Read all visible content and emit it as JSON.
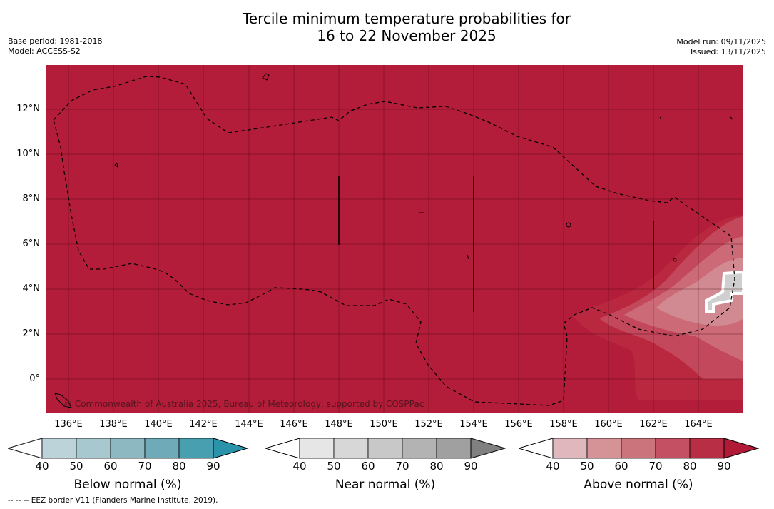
{
  "header": {
    "title_line1": "Tercile minimum temperature probabilities for",
    "title_line2": "16 to 22 November 2025",
    "base_period": "Base period: 1981-2018",
    "model": "Model: ACCESS-S2",
    "model_run": "Model run: 09/11/2025",
    "issued": "Issued: 13/11/2025"
  },
  "map": {
    "background_color": "#b31d3a",
    "copyright": "© Commonwealth of Australia 2025, Bureau of Meteorology, supported by COSPPac",
    "lat_labels": [
      "12°N",
      "10°N",
      "8°N",
      "6°N",
      "4°N",
      "2°N",
      "0°"
    ],
    "lon_labels": [
      "136°E",
      "138°E",
      "140°E",
      "142°E",
      "144°E",
      "146°E",
      "148°E",
      "150°E",
      "152°E",
      "154°E",
      "156°E",
      "158°E",
      "160°E",
      "162°E",
      "164°E"
    ]
  },
  "colorbars": [
    {
      "title": "Below normal (%)",
      "ticks": [
        "40",
        "50",
        "60",
        "70",
        "80",
        "90"
      ],
      "colors": [
        "#ffffff",
        "#bdd3da",
        "#a7c8ce",
        "#8db7c1",
        "#6eaab8",
        "#489fb0",
        "#2a93a9"
      ]
    },
    {
      "title": "Near normal (%)",
      "ticks": [
        "40",
        "50",
        "60",
        "70",
        "80",
        "90"
      ],
      "colors": [
        "#ffffff",
        "#e6e6e6",
        "#d7d7d7",
        "#c8c8c8",
        "#b3b3b3",
        "#a0a0a0",
        "#808080"
      ]
    },
    {
      "title": "Above normal (%)",
      "ticks": [
        "40",
        "50",
        "60",
        "70",
        "80",
        "90"
      ],
      "colors": [
        "#ffffff",
        "#e0b7bd",
        "#d59297",
        "#cc747c",
        "#c45163",
        "#b72e45",
        "#b01a37"
      ]
    }
  ],
  "footer": "--  --  -- EEZ border V11 (Flanders Marine Institute, 2019)."
}
